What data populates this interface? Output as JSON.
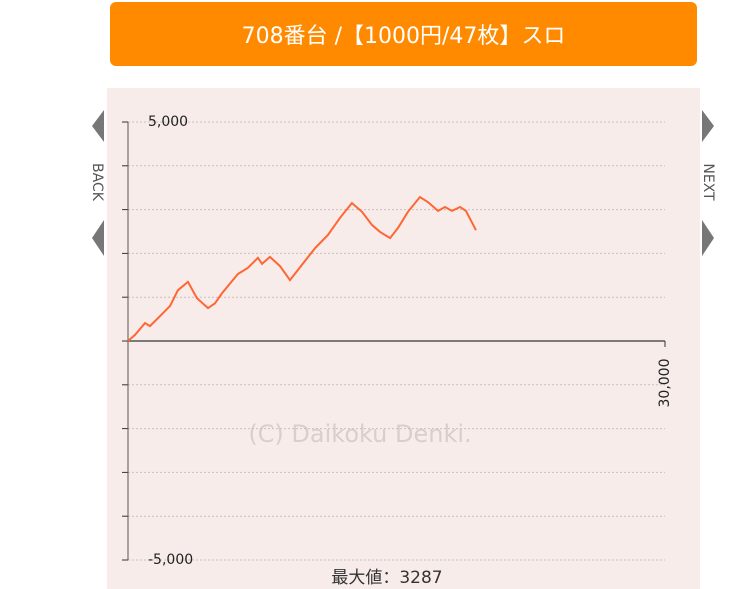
{
  "header": {
    "title": "708番台 /【1000円/47枚】スロ"
  },
  "nav": {
    "back": "BACK",
    "next": "NEXT"
  },
  "chart_data": {
    "type": "line",
    "watermark": "(C) Daikoku Denki.",
    "footer": "最大値：3287",
    "xlim": [
      0,
      30000
    ],
    "ylim": [
      -5000,
      5000
    ],
    "xticks": [
      {
        "value": 30000,
        "label": "30,000"
      }
    ],
    "yticks": [
      {
        "value": -5000,
        "label": "-5,000"
      },
      {
        "value": 5000,
        "label": "5,000"
      }
    ],
    "yminor_ticks": [
      -4000,
      -3000,
      -2000,
      -1000,
      0,
      1000,
      2000,
      3000,
      4000
    ],
    "grid": true,
    "series": [
      {
        "color": "#ff6633",
        "x": [
          0,
          390,
          950,
          1230,
          1790,
          2350,
          2790,
          3350,
          3850,
          4470,
          4860,
          5250,
          6140,
          6700,
          7260,
          7490,
          7930,
          8490,
          9050,
          9720,
          10450,
          11170,
          11840,
          12510,
          13070,
          13630,
          14080,
          14640,
          15080,
          15640,
          16310,
          16760,
          17320,
          17710,
          18100,
          18550,
          18880,
          19440
        ],
        "values": [
          0,
          140,
          410,
          340,
          570,
          800,
          1160,
          1350,
          980,
          750,
          860,
          1090,
          1530,
          1670,
          1900,
          1760,
          1920,
          1710,
          1390,
          1740,
          2120,
          2420,
          2810,
          3150,
          2950,
          2650,
          2490,
          2350,
          2580,
          2950,
          3287,
          3170,
          2970,
          3060,
          2970,
          3060,
          2970,
          2530
        ]
      }
    ]
  }
}
